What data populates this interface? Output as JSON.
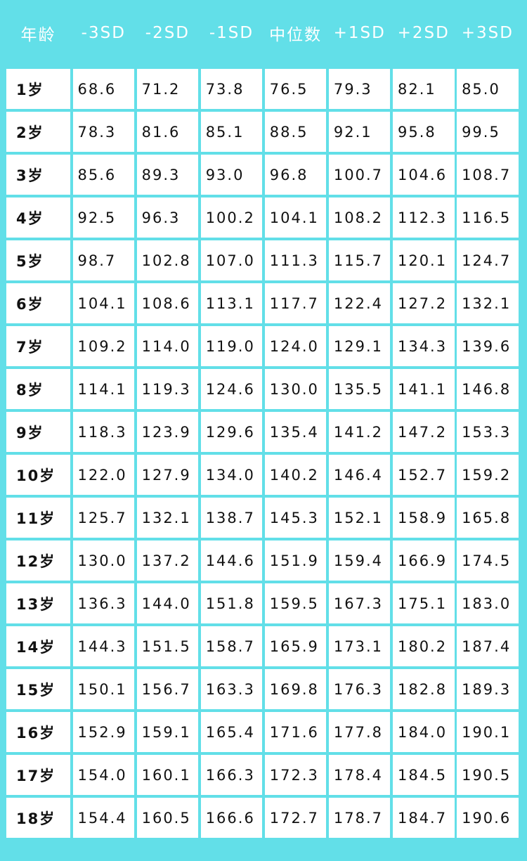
{
  "table": {
    "headers": [
      "年龄",
      "-3SD",
      "-2SD",
      "-1SD",
      "中位数",
      "+1SD",
      "+2SD",
      "+3SD"
    ],
    "rows": [
      [
        "1岁",
        "68.6",
        "71.2",
        "73.8",
        "76.5",
        "79.3",
        "82.1",
        "85.0"
      ],
      [
        "2岁",
        "78.3",
        "81.6",
        "85.1",
        "88.5",
        "92.1",
        "95.8",
        "99.5"
      ],
      [
        "3岁",
        "85.6",
        "89.3",
        "93.0",
        "96.8",
        "100.7",
        "104.6",
        "108.7"
      ],
      [
        "4岁",
        "92.5",
        "96.3",
        "100.2",
        "104.1",
        "108.2",
        "112.3",
        "116.5"
      ],
      [
        "5岁",
        "98.7",
        "102.8",
        "107.0",
        "111.3",
        "115.7",
        "120.1",
        "124.7"
      ],
      [
        "6岁",
        "104.1",
        "108.6",
        "113.1",
        "117.7",
        "122.4",
        "127.2",
        "132.1"
      ],
      [
        "7岁",
        "109.2",
        "114.0",
        "119.0",
        "124.0",
        "129.1",
        "134.3",
        "139.6"
      ],
      [
        "8岁",
        "114.1",
        "119.3",
        "124.6",
        "130.0",
        "135.5",
        "141.1",
        "146.8"
      ],
      [
        "9岁",
        "118.3",
        "123.9",
        "129.6",
        "135.4",
        "141.2",
        "147.2",
        "153.3"
      ],
      [
        "10岁",
        "122.0",
        "127.9",
        "134.0",
        "140.2",
        "146.4",
        "152.7",
        "159.2"
      ],
      [
        "11岁",
        "125.7",
        "132.1",
        "138.7",
        "145.3",
        "152.1",
        "158.9",
        "165.8"
      ],
      [
        "12岁",
        "130.0",
        "137.2",
        "144.6",
        "151.9",
        "159.4",
        "166.9",
        "174.5"
      ],
      [
        "13岁",
        "136.3",
        "144.0",
        "151.8",
        "159.5",
        "167.3",
        "175.1",
        "183.0"
      ],
      [
        "14岁",
        "144.3",
        "151.5",
        "158.7",
        "165.9",
        "173.1",
        "180.2",
        "187.4"
      ],
      [
        "15岁",
        "150.1",
        "156.7",
        "163.3",
        "169.8",
        "176.3",
        "182.8",
        "189.3"
      ],
      [
        "16岁",
        "152.9",
        "159.1",
        "165.4",
        "171.6",
        "177.8",
        "184.0",
        "190.1"
      ],
      [
        "17岁",
        "154.0",
        "160.1",
        "166.3",
        "172.3",
        "178.4",
        "184.5",
        "190.5"
      ],
      [
        "18岁",
        "154.4",
        "160.5",
        "166.6",
        "172.7",
        "178.7",
        "184.7",
        "190.6"
      ]
    ]
  },
  "colors": {
    "background": "#62dfe8",
    "cell": "#ffffff",
    "header_text": "#ffffff",
    "cell_text": "#111111"
  }
}
